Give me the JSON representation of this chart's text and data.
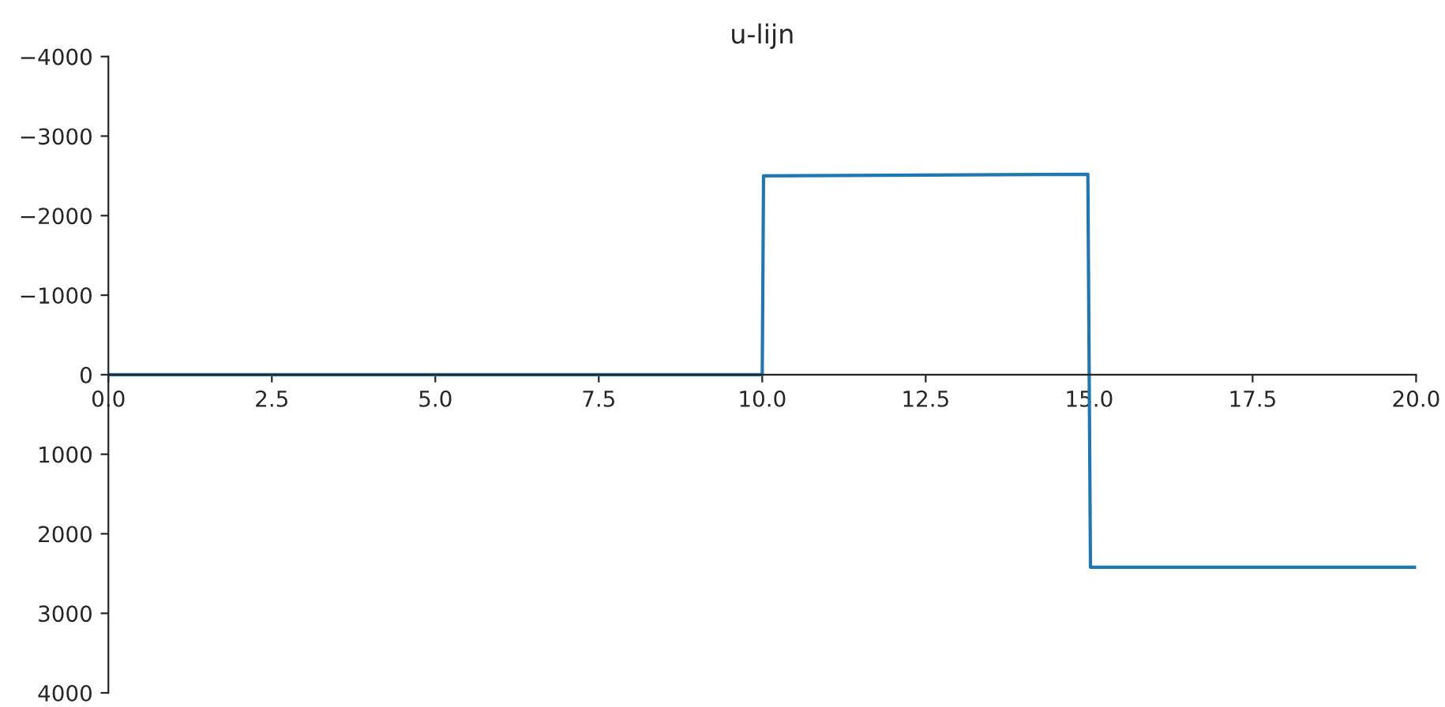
{
  "chart_data": {
    "type": "line",
    "title": "u-lijn",
    "x": [
      0,
      10,
      10.02,
      14.98,
      15.02,
      20
    ],
    "series": [
      {
        "color": "#1f77b4",
        "values": [
          0,
          0,
          -2500,
          -2520,
          2420,
          2420
        ]
      }
    ],
    "xlim": [
      0,
      20
    ],
    "xticks": [
      {
        "value": 0,
        "label": "0.0"
      },
      2.5,
      {
        "value": 5,
        "label": "5.0"
      },
      7.5,
      {
        "value": 10,
        "label": "10.0"
      },
      12.5,
      {
        "value": 15,
        "label": "15.0"
      },
      17.5,
      {
        "value": 20,
        "label": "20.0"
      }
    ],
    "ylim": [
      4000,
      -4000
    ],
    "yticks": [
      {
        "value": -4000,
        "label": "−4000"
      },
      {
        "value": -3000,
        "label": "−3000"
      },
      {
        "value": -2000,
        "label": "−2000"
      },
      {
        "value": -1000,
        "label": "−1000"
      },
      0,
      1000,
      2000,
      3000,
      4000
    ],
    "grid": false,
    "legend": false,
    "marker": "none",
    "line_style": "solid"
  }
}
